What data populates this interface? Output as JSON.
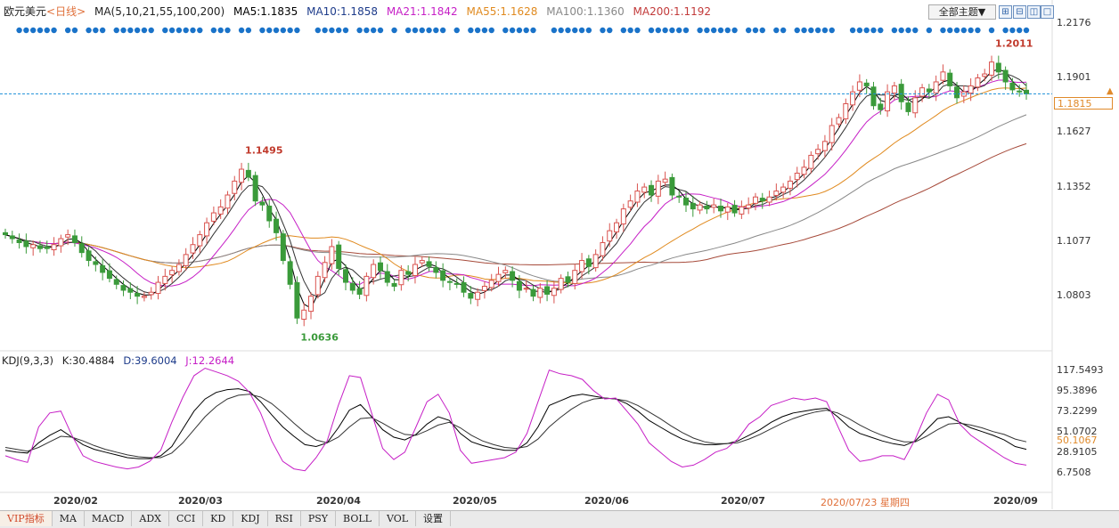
{
  "header": {
    "symbol": "欧元美元",
    "period": "<日线>",
    "ma_params": "MA(5,10,21,55,100,200)",
    "ma5": "MA5:1.1835",
    "ma10": "MA10:1.1858",
    "ma21": "MA21:1.1842",
    "ma55": "MA55:1.1628",
    "ma100": "MA100:1.1360",
    "ma200": "MA200:1.1192",
    "theme_label": "全部主题▼"
  },
  "price_tag": "1.1815",
  "price_axis": [
    "1.2176",
    "1.1901",
    "1.1627",
    "1.1352",
    "1.1077",
    "1.0803"
  ],
  "kdj": {
    "params": "KDJ(9,3,3)",
    "k": "K:30.4884",
    "d": "D:39.6004",
    "j": "J:12.2644",
    "axis": [
      "117.5493",
      "95.3896",
      "73.2299",
      "51.0702",
      "28.9105",
      "6.7508"
    ],
    "current": "50.1067"
  },
  "x_labels": [
    "2020/02",
    "2020/03",
    "2020/04",
    "2020/05",
    "2020/06",
    "2020/07",
    "2020/09"
  ],
  "cursor_date": "2020/07/23 星期四",
  "tabs": [
    "VIP指标",
    "MA",
    "MACD",
    "ADX",
    "CCI",
    "KD",
    "KDJ",
    "RSI",
    "PSY",
    "BOLL",
    "VOL",
    "设置"
  ],
  "colors": {
    "up": "#d9534f",
    "down": "#3a9a3a",
    "ma5": "#000000",
    "ma10": "#333333",
    "ma21": "#c61fc6",
    "ma55": "#e08a1f",
    "ma100": "#888888",
    "ma200": "#a64a3a"
  },
  "chart_data": [
    {
      "type": "candlestick",
      "title": "欧元美元 日线",
      "ylim": [
        1.0636,
        1.2176
      ],
      "annotations": [
        {
          "label": "1.1495",
          "type": "high"
        },
        {
          "label": "1.0636",
          "type": "low"
        },
        {
          "label": "1.2011",
          "type": "high"
        }
      ],
      "close": [
        1.111,
        1.109,
        1.107,
        1.105,
        1.106,
        1.104,
        1.104,
        1.106,
        1.109,
        1.111,
        1.107,
        1.102,
        1.098,
        1.096,
        1.092,
        1.089,
        1.086,
        1.083,
        1.082,
        1.08,
        1.08,
        1.082,
        1.087,
        1.09,
        1.093,
        1.096,
        1.101,
        1.106,
        1.111,
        1.117,
        1.122,
        1.125,
        1.131,
        1.138,
        1.144,
        1.14,
        1.128,
        1.126,
        1.118,
        1.112,
        1.098,
        1.086,
        1.069,
        1.073,
        1.08,
        1.09,
        1.097,
        1.105,
        1.094,
        1.087,
        1.083,
        1.081,
        1.09,
        1.096,
        1.093,
        1.087,
        1.085,
        1.093,
        1.091,
        1.096,
        1.098,
        1.095,
        1.092,
        1.088,
        1.087,
        1.086,
        1.082,
        1.079,
        1.082,
        1.085,
        1.088,
        1.091,
        1.093,
        1.088,
        1.083,
        1.084,
        1.08,
        1.084,
        1.081,
        1.084,
        1.089,
        1.087,
        1.093,
        1.098,
        1.095,
        1.101,
        1.107,
        1.113,
        1.117,
        1.124,
        1.128,
        1.133,
        1.135,
        1.131,
        1.138,
        1.139,
        1.131,
        1.13,
        1.126,
        1.124,
        1.126,
        1.124,
        1.126,
        1.123,
        1.125,
        1.122,
        1.125,
        1.126,
        1.13,
        1.128,
        1.13,
        1.133,
        1.135,
        1.138,
        1.142,
        1.145,
        1.151,
        1.154,
        1.158,
        1.166,
        1.17,
        1.177,
        1.183,
        1.188,
        1.186,
        1.176,
        1.174,
        1.183,
        1.186,
        1.178,
        1.173,
        1.18,
        1.185,
        1.183,
        1.188,
        1.193,
        1.186,
        1.18,
        1.183,
        1.186,
        1.19,
        1.192,
        1.198,
        1.193,
        1.188,
        1.184,
        1.183,
        1.182
      ]
    },
    {
      "type": "line",
      "title": "KDJ(9,3,3)",
      "ylim": [
        6.7508,
        117.5493
      ],
      "series": [
        {
          "name": "K",
          "values": [
            30,
            28,
            27,
            38,
            46,
            52,
            44,
            36,
            31,
            28,
            25,
            22,
            21,
            21,
            24,
            34,
            53,
            72,
            85,
            92,
            95,
            96,
            93,
            82,
            68,
            55,
            45,
            36,
            34,
            38,
            54,
            73,
            79,
            66,
            52,
            44,
            41,
            47,
            58,
            66,
            62,
            48,
            39,
            35,
            32,
            30,
            30,
            38,
            55,
            78,
            83,
            88,
            90,
            88,
            86,
            85,
            80,
            72,
            62,
            55,
            48,
            42,
            38,
            36,
            36,
            37,
            40,
            46,
            52,
            60,
            66,
            70,
            72,
            74,
            75,
            66,
            55,
            48,
            44,
            40,
            37,
            35,
            40,
            52,
            64,
            66,
            60,
            54,
            50,
            46,
            41,
            34,
            31
          ]
        },
        {
          "name": "D",
          "values": [
            33,
            31,
            29,
            33,
            39,
            45,
            44,
            40,
            35,
            31,
            28,
            25,
            23,
            22,
            22,
            27,
            38,
            52,
            66,
            77,
            85,
            89,
            90,
            87,
            80,
            70,
            59,
            49,
            41,
            38,
            44,
            55,
            64,
            65,
            59,
            52,
            47,
            46,
            51,
            57,
            60,
            54,
            46,
            40,
            36,
            33,
            32,
            34,
            42,
            55,
            65,
            74,
            81,
            85,
            86,
            85,
            83,
            78,
            71,
            64,
            56,
            49,
            43,
            39,
            37,
            37,
            38,
            42,
            47,
            53,
            59,
            64,
            68,
            71,
            73,
            70,
            64,
            57,
            51,
            46,
            42,
            39,
            39,
            45,
            52,
            58,
            59,
            57,
            54,
            50,
            47,
            42,
            39
          ]
        },
        {
          "name": "J",
          "values": [
            24,
            20,
            17,
            55,
            70,
            72,
            46,
            24,
            18,
            15,
            12,
            10,
            12,
            18,
            30,
            60,
            87,
            110,
            118,
            114,
            110,
            104,
            92,
            70,
            40,
            18,
            10,
            8,
            22,
            40,
            78,
            110,
            108,
            70,
            32,
            20,
            28,
            55,
            82,
            90,
            70,
            30,
            16,
            18,
            20,
            22,
            28,
            48,
            82,
            116,
            112,
            110,
            106,
            94,
            85,
            86,
            72,
            58,
            38,
            28,
            18,
            12,
            14,
            20,
            28,
            32,
            42,
            58,
            66,
            78,
            82,
            86,
            84,
            86,
            82,
            56,
            30,
            18,
            20,
            24,
            24,
            20,
            42,
            70,
            90,
            84,
            58,
            46,
            38,
            30,
            22,
            16,
            14
          ]
        }
      ]
    }
  ]
}
